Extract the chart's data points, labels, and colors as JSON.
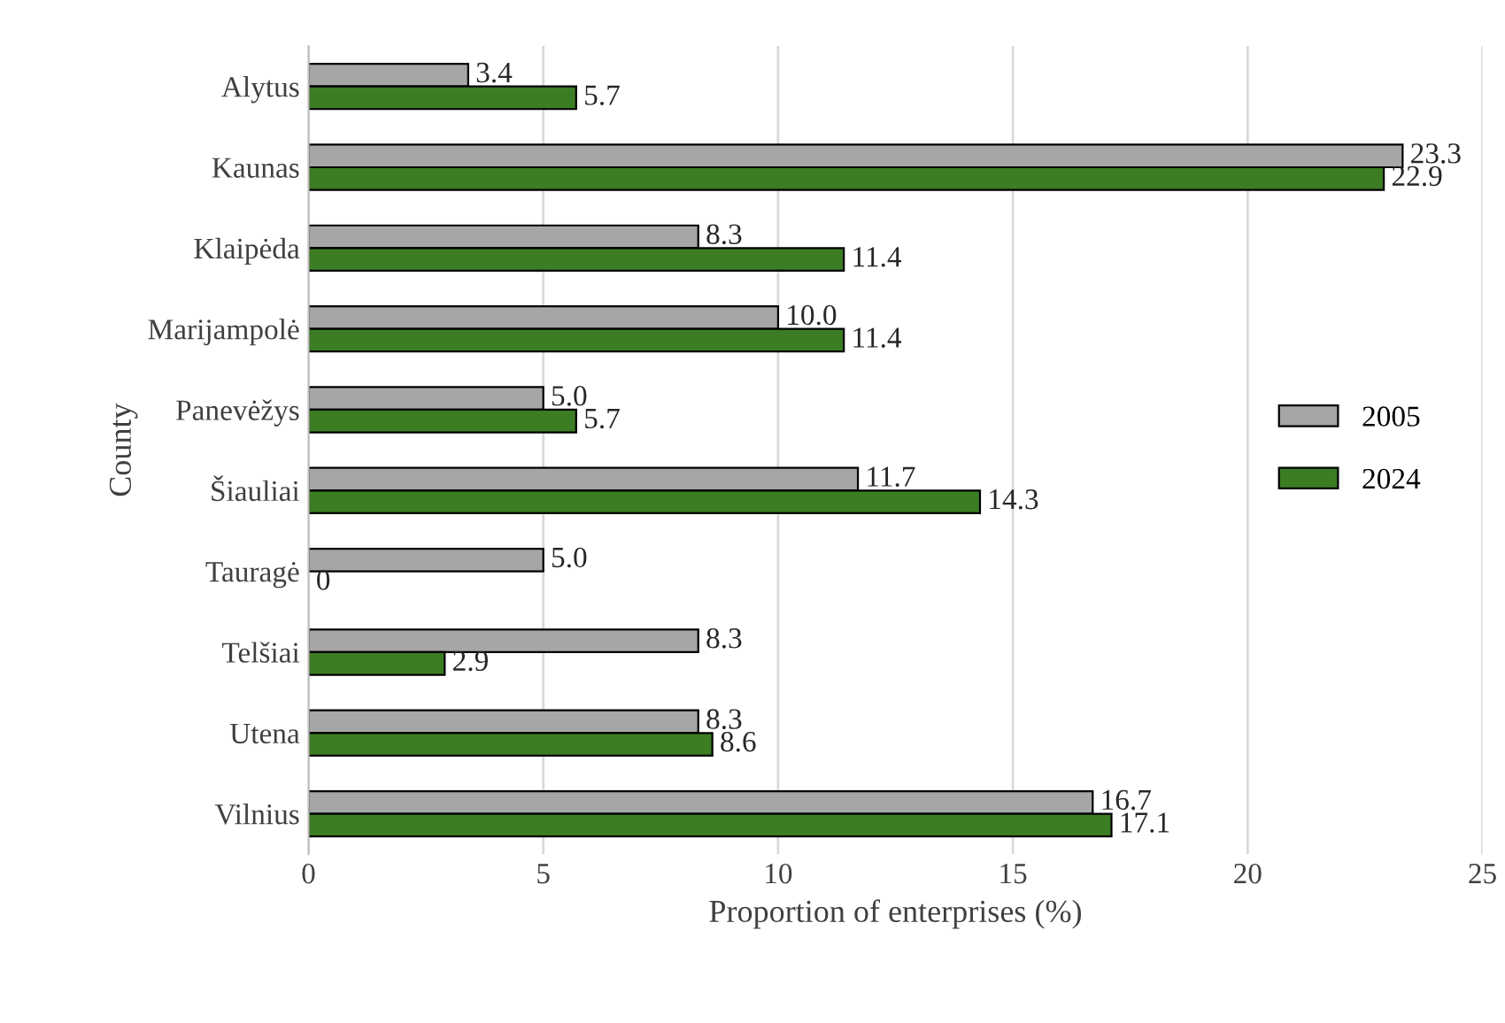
{
  "chart_data": {
    "type": "bar",
    "orientation": "horizontal",
    "xlabel": "Proportion of enterprises (%)",
    "ylabel": "County",
    "categories": [
      "Alytus",
      "Kaunas",
      "Klaipėda",
      "Marijampolė",
      "Panevėžys",
      "Šiauliai",
      "Tauragė",
      "Telšiai",
      "Utena",
      "Vilnius"
    ],
    "series": [
      {
        "name": "2005",
        "color": "#a6a6a6",
        "values": [
          3.4,
          23.3,
          8.3,
          10.0,
          5.0,
          11.7,
          5.0,
          8.3,
          8.3,
          16.7
        ],
        "value_labels": [
          "3.4",
          "23.3",
          "8.3",
          "10.0",
          "5.0",
          "11.7",
          "5.0",
          "8.3",
          "8.3",
          "16.7"
        ]
      },
      {
        "name": "2024",
        "color": "#3b7d23",
        "values": [
          5.7,
          22.9,
          11.4,
          11.4,
          5.7,
          14.3,
          0,
          2.9,
          8.6,
          17.1
        ],
        "value_labels": [
          "5.7",
          "22.9",
          "11.4",
          "11.4",
          "5.7",
          "14.3",
          "0",
          "2.9",
          "8.6",
          "17.1"
        ]
      }
    ],
    "xlim": [
      0,
      25
    ],
    "xticks": [
      0,
      5,
      10,
      15,
      20,
      25
    ],
    "grid": "x",
    "legend": "right"
  }
}
